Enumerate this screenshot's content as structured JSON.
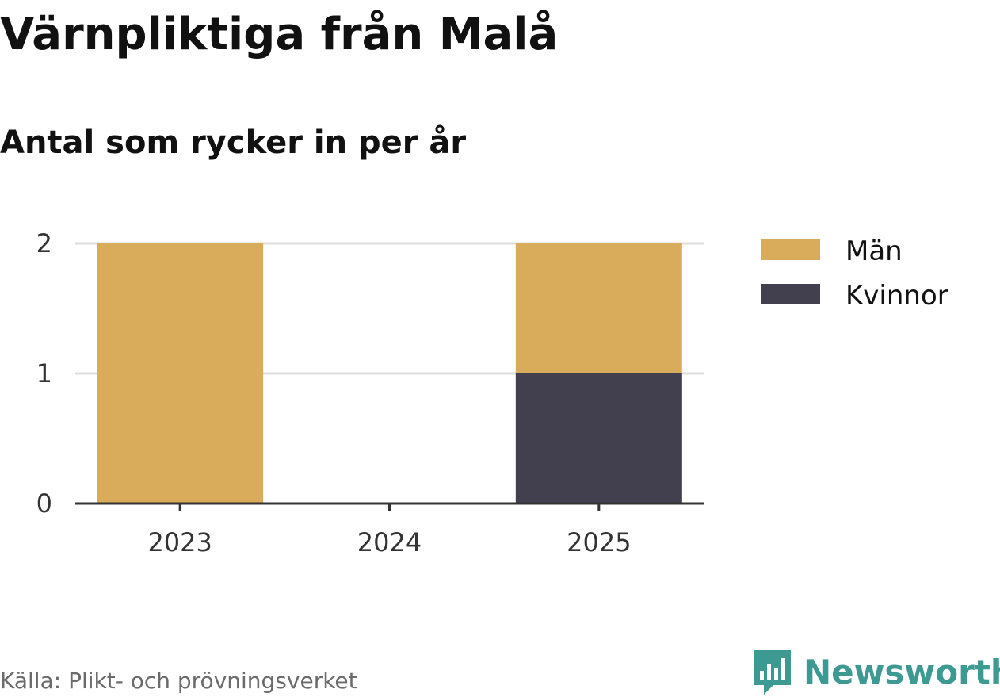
{
  "chart_data": {
    "type": "bar",
    "stacked": true,
    "title": "Värnpliktiga från Malå",
    "subtitle": "Antal som rycker in per år",
    "categories": [
      "2023",
      "2024",
      "2025"
    ],
    "series": [
      {
        "name": "Kvinnor",
        "values": [
          0,
          0,
          1
        ],
        "color": "#42404e"
      },
      {
        "name": "Män",
        "values": [
          2,
          0,
          1
        ],
        "color": "#d9ac5b"
      }
    ],
    "legend_order": [
      "Män",
      "Kvinnor"
    ],
    "ylim": [
      0,
      2
    ],
    "yticks": [
      0,
      1,
      2
    ],
    "grid": true,
    "legend_position": "right",
    "source": "Källa: Plikt- och prövningsverket"
  },
  "brand": {
    "name": "Newsworthy",
    "logo_icon": "bar-chart-speech-bubble-icon",
    "color": "#3d9a92"
  },
  "colors": {
    "grid": "#dddddd",
    "axis": "#333333"
  }
}
